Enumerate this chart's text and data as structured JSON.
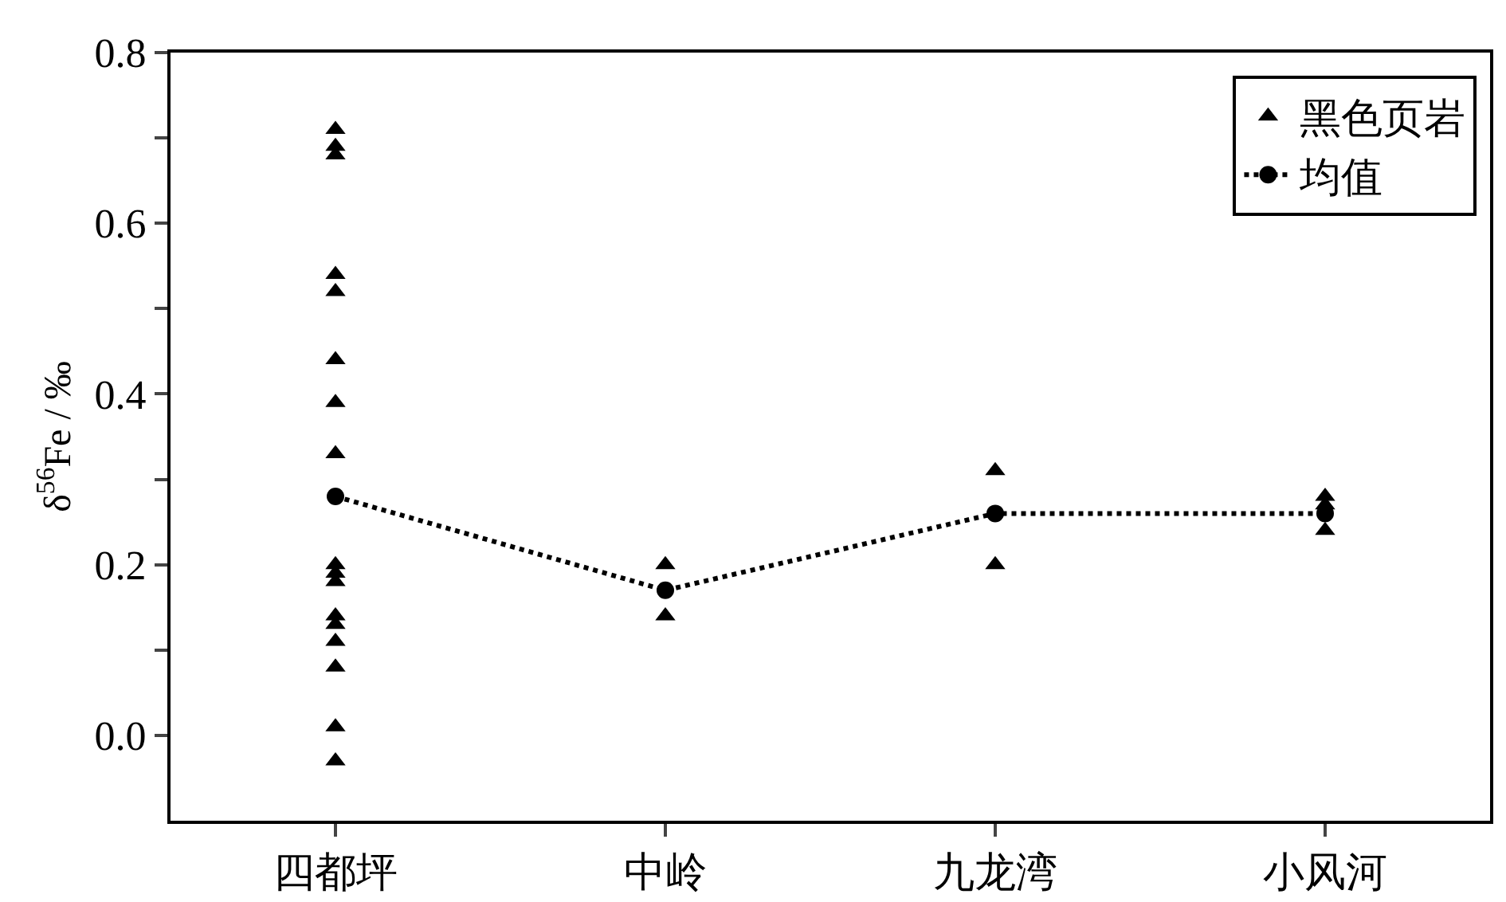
{
  "chart_data": {
    "type": "scatter",
    "ylabel": "δ$^{56}$Fe / ‰",
    "categories": [
      "四都坪",
      "中岭",
      "九龙湾",
      "小风河"
    ],
    "ylim": [
      -0.1,
      0.8
    ],
    "yticks": [
      {
        "value": 0,
        "label": "0.0"
      },
      {
        "value": 0.1,
        "label": null
      },
      0.2,
      {
        "value": 0.3,
        "label": null
      },
      0.4,
      {
        "value": 0.5,
        "label": null
      },
      0.6,
      {
        "value": 0.7,
        "label": null
      },
      0.8
    ],
    "grid": false,
    "legend": "top right",
    "series": [
      {
        "name": "黑色页岩",
        "marker": "triangle",
        "color": "#000000",
        "x": [
          "四都坪",
          "四都坪",
          "四都坪",
          "四都坪",
          "四都坪",
          "四都坪",
          "四都坪",
          "四都坪",
          "四都坪",
          "四都坪",
          "四都坪",
          "四都坪",
          "四都坪",
          "四都坪",
          "四都坪",
          "四都坪",
          "四都坪",
          "中岭",
          "中岭",
          "九龙湾",
          "九龙湾",
          "小风河",
          "小风河",
          "小风河"
        ],
        "values": [
          0.71,
          0.69,
          0.68,
          0.54,
          0.52,
          0.44,
          0.39,
          0.33,
          0.2,
          0.19,
          0.18,
          0.14,
          0.13,
          0.11,
          0.08,
          0.01,
          -0.03,
          0.2,
          0.14,
          0.31,
          0.2,
          0.28,
          0.27,
          0.24
        ]
      },
      {
        "name": "均值",
        "type": "line",
        "marker": "circle",
        "line_style": "dotted",
        "color": "#000000",
        "values": [
          0.28,
          0.17,
          0.26,
          0.26
        ]
      }
    ]
  }
}
